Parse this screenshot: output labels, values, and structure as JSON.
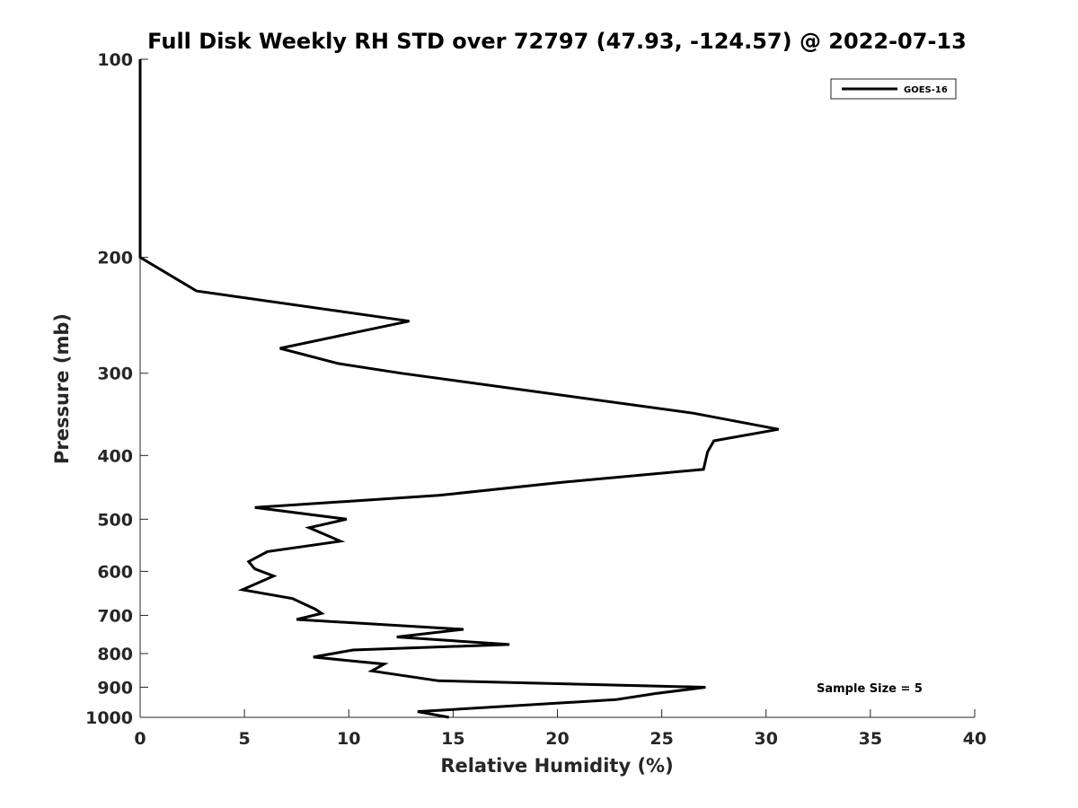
{
  "chart_data": {
    "type": "line",
    "title": "Full Disk Weekly RH STD over 72797 (47.93, -124.57) @ 2022-07-13",
    "xlabel": "Relative Humidity (%)",
    "ylabel": "Pressure (mb)",
    "xlim": [
      0,
      40
    ],
    "ylim": [
      1000,
      100
    ],
    "y_scale": "log",
    "x_ticks": [
      "0",
      "5",
      "10",
      "15",
      "20",
      "25",
      "30",
      "35",
      "40"
    ],
    "y_ticks": [
      "100",
      "200",
      "300",
      "400",
      "500",
      "600",
      "700",
      "800",
      "900",
      "1000"
    ],
    "grid": false,
    "legend_position": "top-right",
    "series": [
      {
        "name": "GOES-16",
        "color": "#000000",
        "x": [
          0,
          0,
          0,
          0,
          2.7,
          12.9,
          6.7,
          9.5,
          12.5,
          26.5,
          30.6,
          27.5,
          27.2,
          27.0,
          20.0,
          14.3,
          5.5,
          9.9,
          8.1,
          9.6,
          6.1,
          5.2,
          5.5,
          6.4,
          4.9,
          7.3,
          8.4,
          8.7,
          7.5,
          15.5,
          12.3,
          17.7,
          10.2,
          8.3,
          11.7,
          11.1,
          14.3,
          27.1,
          24.7,
          22.8,
          13.3,
          14.8
        ],
        "y": [
          100,
          150,
          180,
          200,
          225,
          250,
          275,
          290,
          300,
          345,
          365,
          380,
          395,
          420,
          440,
          460,
          480,
          500,
          515,
          540,
          560,
          580,
          595,
          610,
          640,
          660,
          685,
          695,
          710,
          735,
          755,
          775,
          790,
          810,
          830,
          850,
          880,
          900,
          920,
          940,
          980,
          1000
        ]
      }
    ],
    "annotations": [
      "Sample Size = 5"
    ]
  }
}
